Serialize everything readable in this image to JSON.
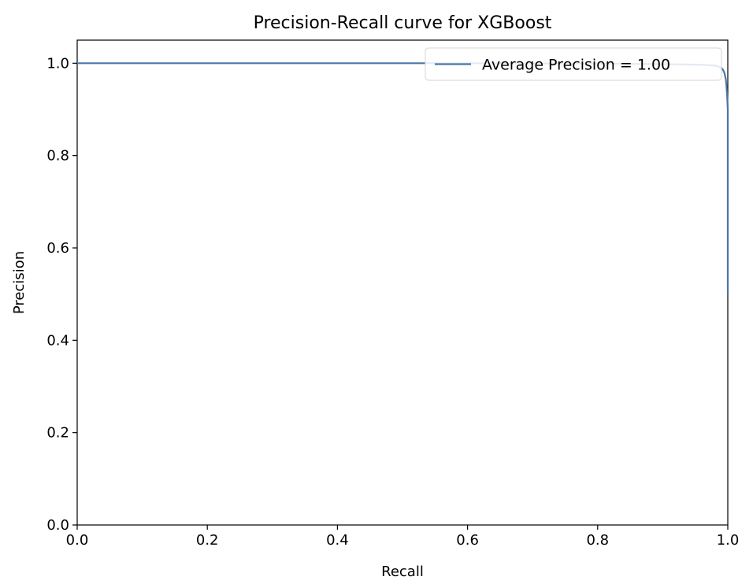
{
  "chart_data": {
    "type": "line",
    "title": "Precision-Recall curve for XGBoost",
    "xlabel": "Recall",
    "ylabel": "Precision",
    "xlim": [
      0.0,
      1.0
    ],
    "ylim": [
      0.0,
      1.05
    ],
    "xticks": [
      "0.0",
      "0.2",
      "0.4",
      "0.6",
      "0.8",
      "1.0"
    ],
    "yticks": [
      "0.0",
      "0.2",
      "0.4",
      "0.6",
      "0.8",
      "1.0"
    ],
    "grid": false,
    "legend_position": "top-right",
    "series": [
      {
        "name": "Average Precision = 1.00",
        "color": "#4a76a8",
        "x": [
          0.0,
          0.3,
          0.6,
          0.8,
          0.9,
          0.95,
          0.97,
          0.98,
          0.985,
          0.99,
          0.993,
          0.995,
          0.997,
          0.998,
          0.999,
          1.0,
          1.0
        ],
        "y": [
          1.0,
          1.0,
          1.0,
          0.999,
          0.998,
          0.997,
          0.996,
          0.995,
          0.993,
          0.99,
          0.985,
          0.978,
          0.965,
          0.95,
          0.93,
          0.9,
          0.5
        ]
      }
    ]
  }
}
